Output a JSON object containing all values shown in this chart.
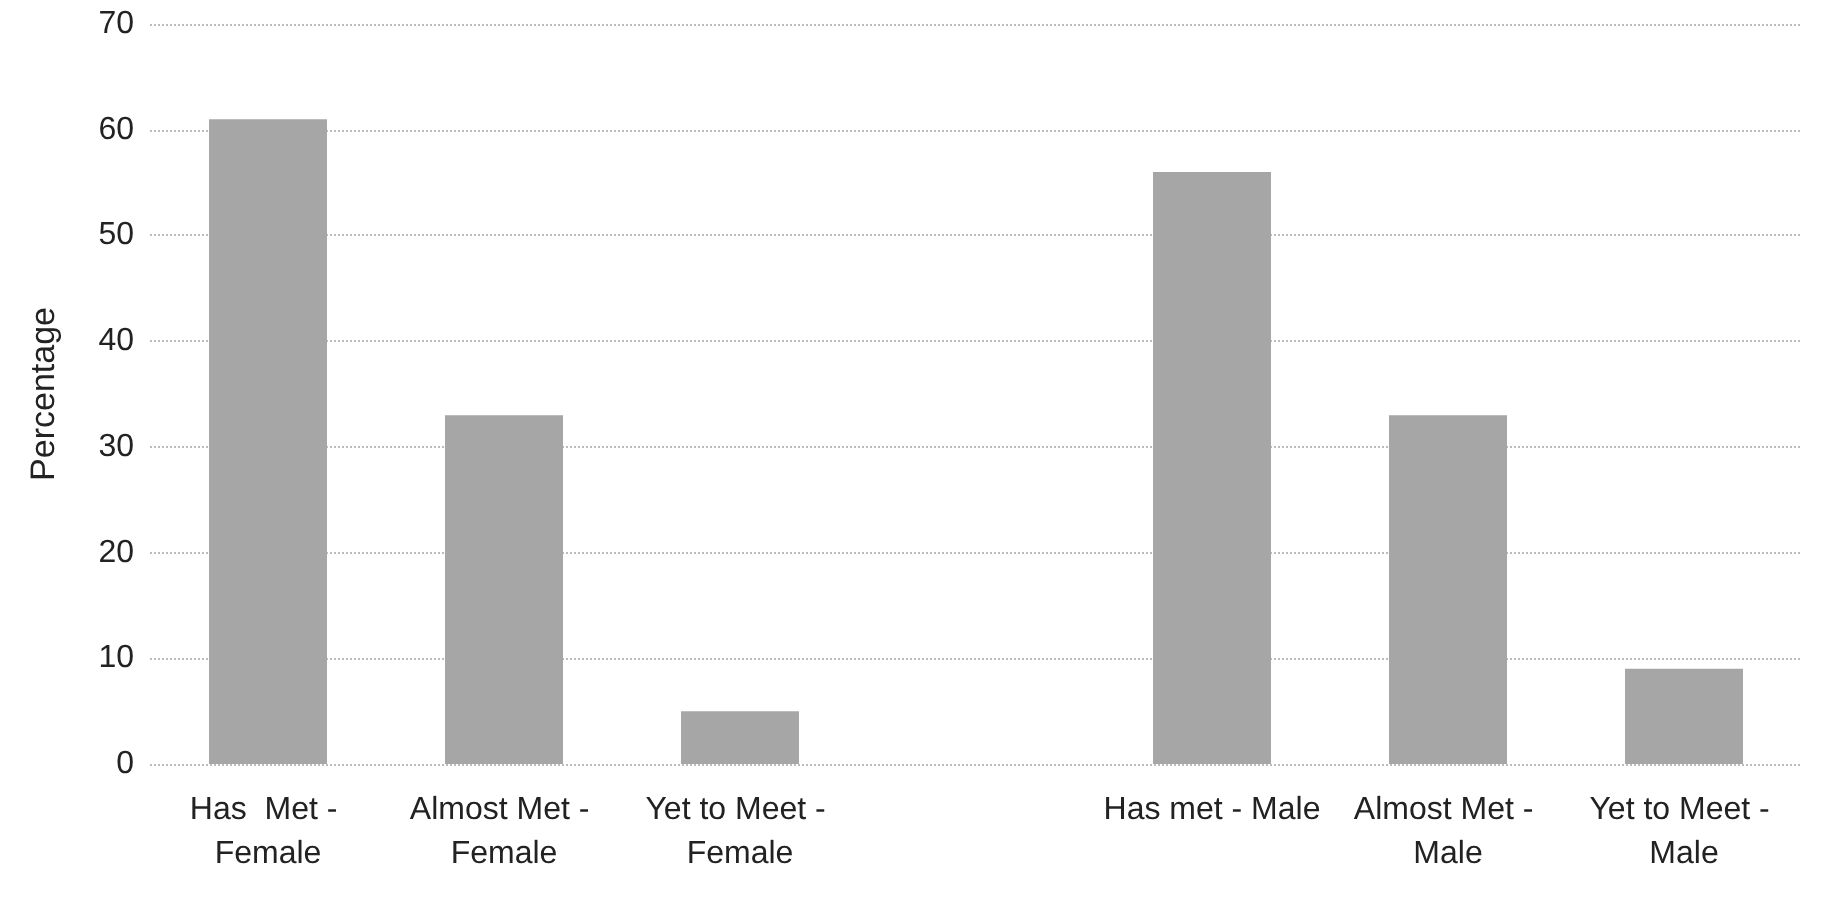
{
  "chart_data": {
    "type": "bar",
    "ylabel": "Percentage",
    "categories": [
      "Has  Met - Female",
      "Almost Met - Female",
      "Yet to Meet - Female",
      null,
      "Has met - Male",
      "Almost Met - Male",
      "Yet to Meet - Male"
    ],
    "values": [
      61,
      33,
      5,
      null,
      56,
      33,
      9
    ],
    "color": "#a6a6a6",
    "ylim": [
      0,
      70
    ],
    "yticks": [
      0,
      10,
      20,
      30,
      40,
      50,
      60,
      70
    ],
    "grid": "y"
  }
}
